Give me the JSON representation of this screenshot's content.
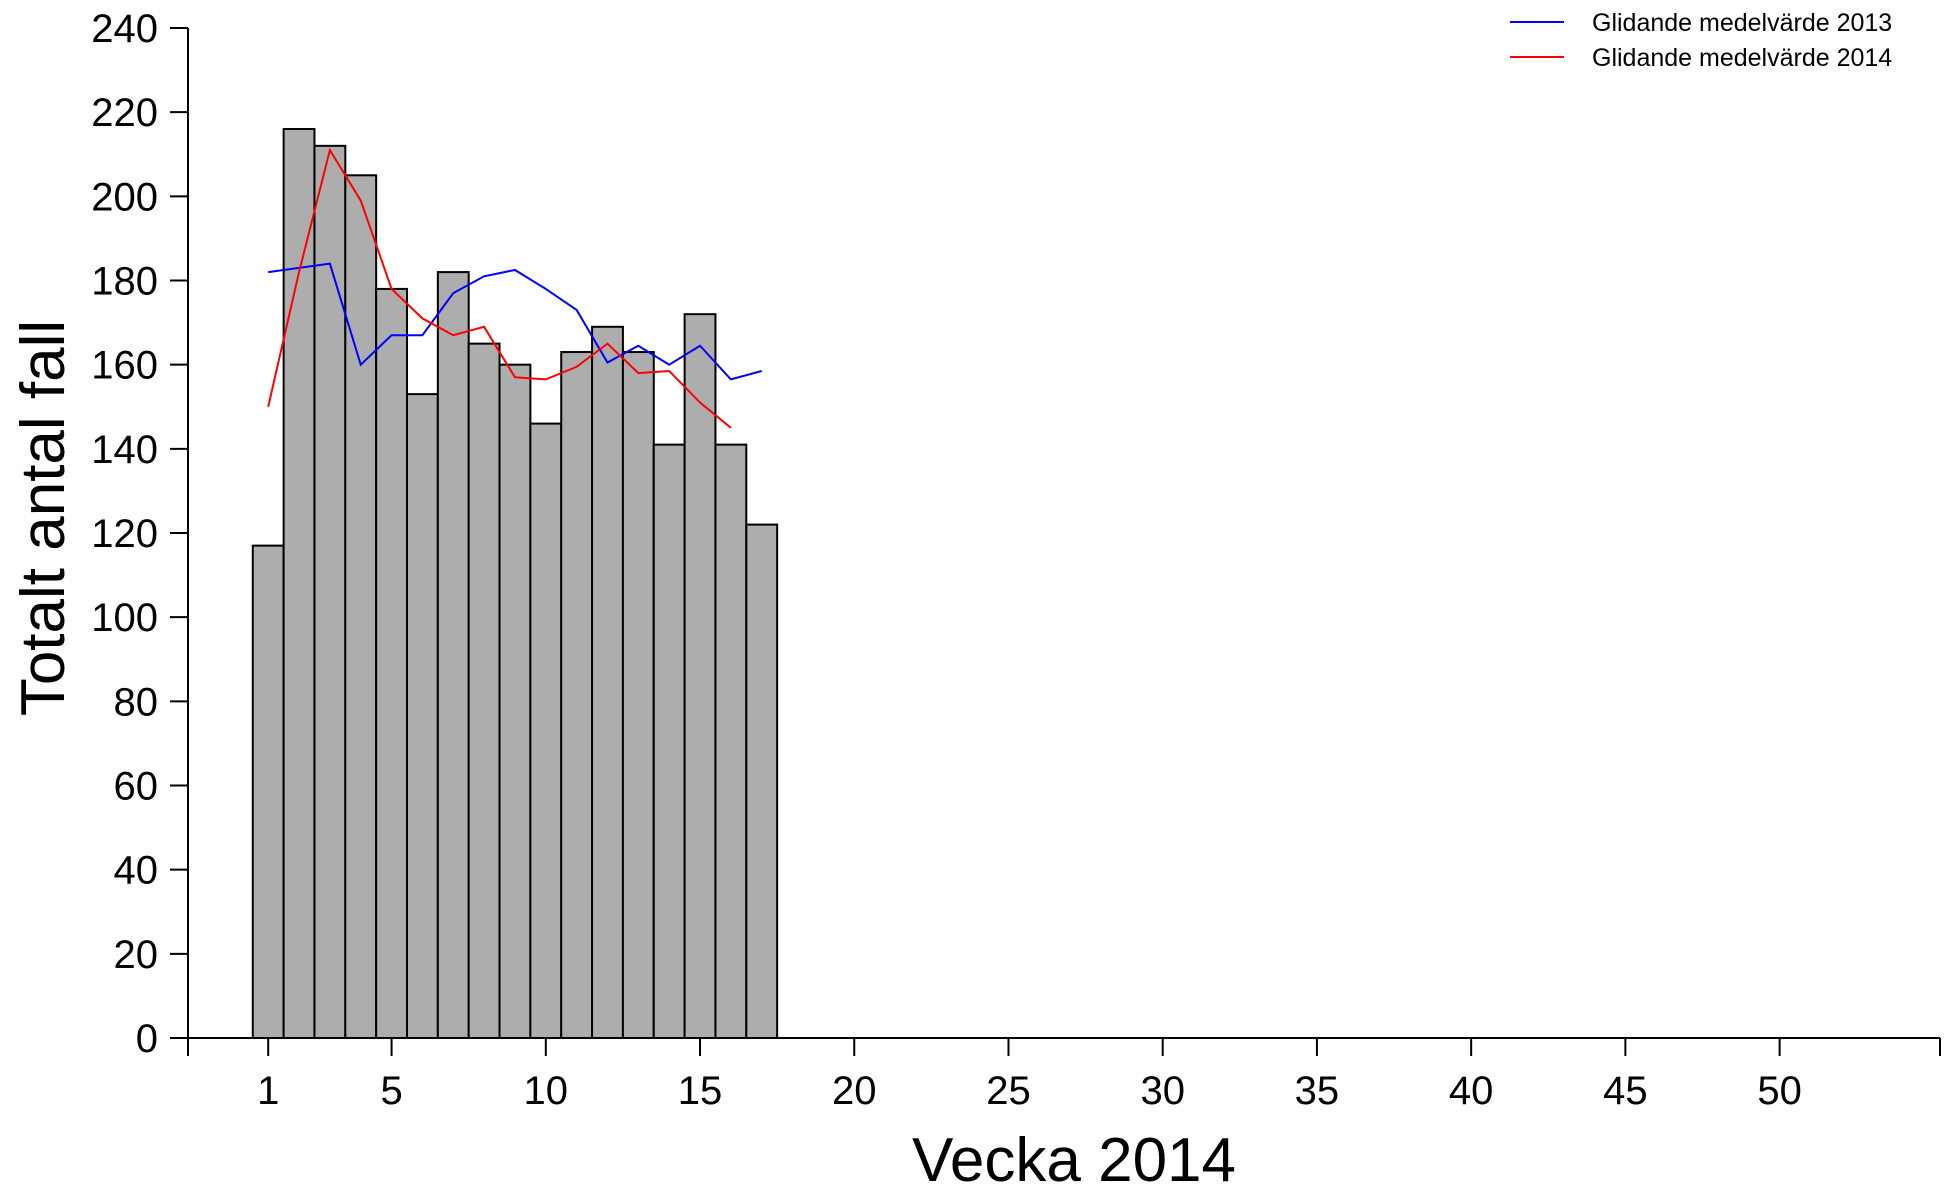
{
  "chart_data": {
    "type": "bar",
    "title": "",
    "xlabel": "Vecka 2014",
    "ylabel": "Totalt antal fall",
    "xlim": [
      -1.6,
      55.2
    ],
    "ylim": [
      0,
      240
    ],
    "x_ticks": [
      1,
      5,
      10,
      15,
      20,
      25,
      30,
      35,
      40,
      45,
      50
    ],
    "y_ticks": [
      0,
      20,
      40,
      60,
      80,
      100,
      120,
      140,
      160,
      180,
      200,
      220,
      240
    ],
    "grid": false,
    "legend_position": "top-right",
    "bars": {
      "weeks": [
        1,
        2,
        3,
        4,
        5,
        6,
        7,
        8,
        9,
        10,
        11,
        12,
        13,
        14,
        15,
        16,
        17
      ],
      "values": [
        117,
        216,
        212,
        205,
        178,
        153,
        182,
        165,
        160,
        146,
        163,
        169,
        163,
        141,
        172,
        141,
        122
      ],
      "color": "#adadad"
    },
    "series": [
      {
        "name": "Glidande medelvärde 2013",
        "color": "#0000ff",
        "x": [
          1,
          2,
          3,
          4,
          5,
          6,
          7,
          8,
          9,
          10,
          11,
          12,
          13,
          14,
          15,
          16,
          17
        ],
        "values": [
          182,
          183,
          184,
          160,
          167,
          167,
          177,
          181,
          182.5,
          178,
          173,
          160.5,
          164.5,
          160,
          164.5,
          156.5,
          158.5
        ]
      },
      {
        "name": "Glidande medelvärde 2014",
        "color": "#ff0000",
        "x": [
          1,
          2,
          3,
          4,
          5,
          6,
          7,
          8,
          9,
          10,
          11,
          12,
          13,
          14,
          15,
          16
        ],
        "values": [
          150,
          182,
          211,
          199,
          178,
          171,
          167,
          169,
          157,
          156.5,
          159.5,
          165,
          158,
          158.5,
          151,
          145
        ]
      }
    ]
  }
}
